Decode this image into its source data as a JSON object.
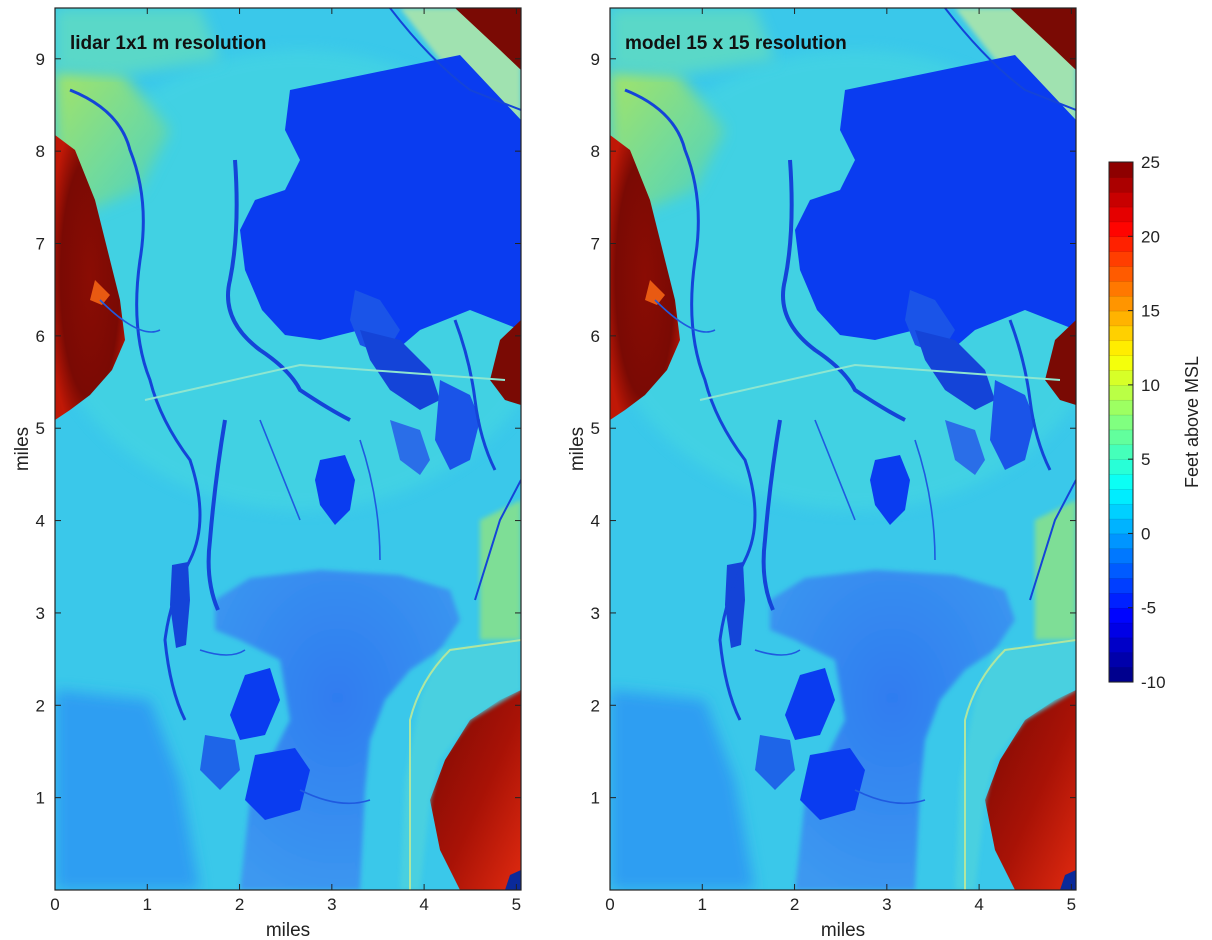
{
  "colors": {
    "bay_water": "#0a3cf0",
    "channel": "#1444d8",
    "marsh_low": "#2aa8f0",
    "marsh_mid": "#3ad0e8",
    "upland_green": "#8ee070",
    "hill_red": "#7a0a04",
    "hill_orange": "#d83a10",
    "shallow_bay": "#3a8ef0"
  },
  "chart_data": [
    {
      "type": "heatmap",
      "title": "lidar 1x1 m resolution",
      "xlabel": "miles",
      "ylabel": "miles",
      "xlim": [
        0,
        5.05
      ],
      "ylim": [
        0,
        9.55
      ],
      "xticks": [
        0,
        1,
        2,
        3,
        4,
        5
      ],
      "yticks": [
        1,
        2,
        3,
        4,
        5,
        6,
        7,
        8,
        9
      ],
      "grid": false
    },
    {
      "type": "heatmap",
      "title": "model 15 x 15 resolution",
      "xlabel": "miles",
      "ylabel": "miles",
      "xlim": [
        0,
        5.05
      ],
      "ylim": [
        0,
        9.55
      ],
      "xticks": [
        0,
        1,
        2,
        3,
        4,
        5
      ],
      "yticks": [
        1,
        2,
        3,
        4,
        5,
        6,
        7,
        8,
        9
      ],
      "grid": false
    }
  ],
  "colorbar": {
    "label": "Feet above MSL",
    "range": [
      -10,
      25
    ],
    "ticks": [
      25,
      20,
      15,
      10,
      5,
      0,
      -5,
      -10
    ],
    "levels": 35
  }
}
